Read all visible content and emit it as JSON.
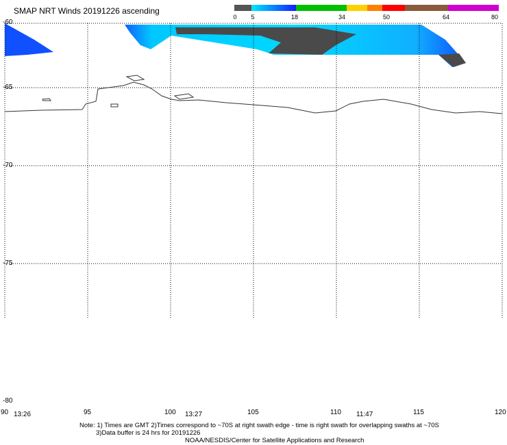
{
  "title": "SMAP NRT Winds 20191226 ascending",
  "colorbar": {
    "labels": [
      "0",
      "5",
      "18",
      "34",
      "50",
      "64",
      "80"
    ],
    "colors": [
      "#555555",
      "#00e0ff",
      "#1030ff",
      "#00c000",
      "#ffd000",
      "#ff0000",
      "#805030",
      "#ff00ff",
      "#8000a0"
    ]
  },
  "map": {
    "lat_labels": [
      "-60",
      "-65",
      "-70",
      "-75",
      "-80"
    ],
    "lon_labels": [
      "90",
      "95",
      "100",
      "105",
      "110",
      "115",
      "120"
    ],
    "swath_times": [
      "13:26",
      "13:27",
      "11:47"
    ],
    "ocean_color": "#00ccff",
    "deep_blue": "#1040ff",
    "land_color": "#4a4a4a",
    "coast_color": "#333333"
  },
  "notes": {
    "line1": "Note: 1) Times are GMT 2)Times correspond to ~70S at right swath edge - time is right swath for overlapping swaths at ~70S",
    "line2": "3)Data buffer is 24 hrs for 20191226",
    "line3": "NOAA/NESDIS/Center for Satellite Applications and Research"
  }
}
